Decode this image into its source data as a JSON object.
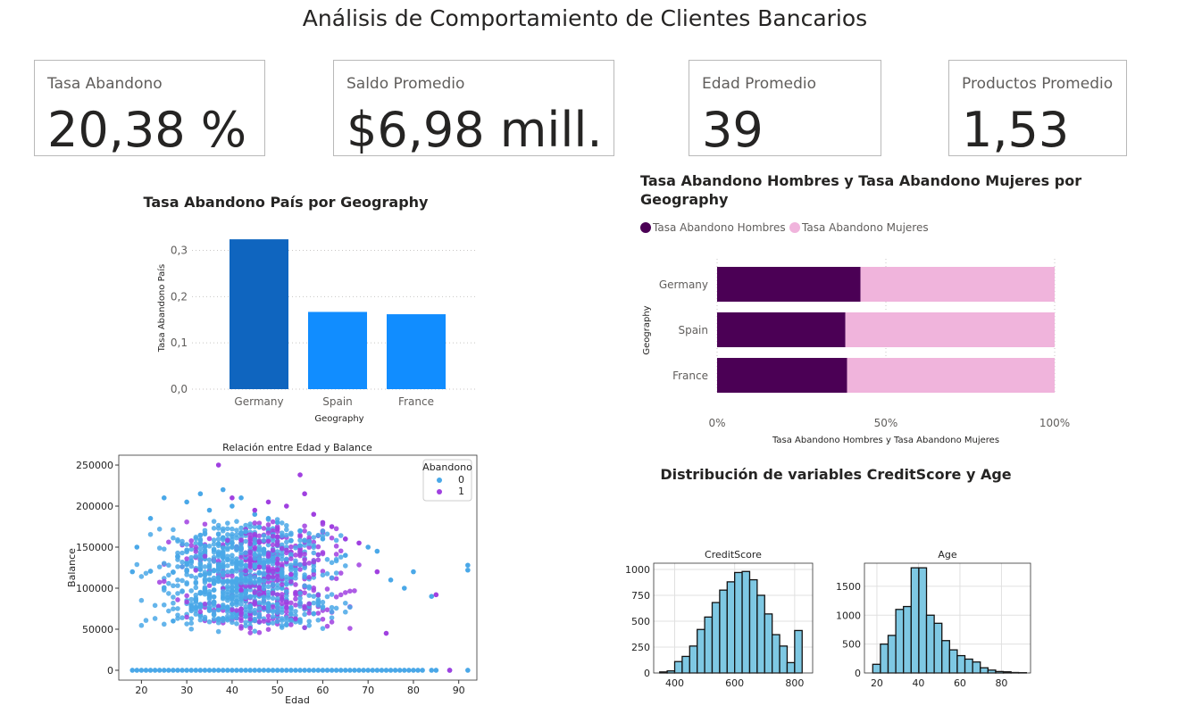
{
  "title": "Análisis de Comportamiento de Clientes Bancarios",
  "kpis": [
    {
      "label": "Tasa Abandono",
      "value": "20,38 %"
    },
    {
      "label": "Saldo Promedio",
      "value": "$6,98 mill."
    },
    {
      "label": "Edad Promedio",
      "value": "39"
    },
    {
      "label": "Productos Promedio",
      "value": "1,53"
    }
  ],
  "colors": {
    "bar_dark": "#0f65bf",
    "bar_light": "#118dff",
    "men": "#4b0055",
    "women": "#f0b4dc",
    "no_churn": "#4aa8e8",
    "churn": "#a040e0",
    "hist": "#7ec8e3"
  },
  "chart_data": [
    {
      "type": "bar",
      "title": "Tasa Abandono País por Geography",
      "xlabel": "Geography",
      "ylabel": "Tasa Abandono País",
      "categories": [
        "Germany",
        "Spain",
        "France"
      ],
      "values": [
        0.324,
        0.167,
        0.162
      ],
      "ylim": [
        0,
        0.33
      ],
      "yticks": [
        "0,0",
        "0,1",
        "0,2",
        "0,3"
      ],
      "grid": true
    },
    {
      "type": "bar",
      "orientation": "horizontal-100%-stacked",
      "title": "Tasa Abandono Hombres y Tasa Abandono Mujeres por Geography",
      "xlabel": "Tasa Abandono Hombres y Tasa Abandono Mujeres",
      "ylabel": "Geography",
      "categories": [
        "Germany",
        "Spain",
        "France"
      ],
      "series": [
        {
          "name": "Tasa Abandono Hombres",
          "values": [
            42.5,
            38.0,
            38.5
          ]
        },
        {
          "name": "Tasa Abandono Mujeres",
          "values": [
            57.5,
            62.0,
            61.5
          ]
        }
      ],
      "xticks": [
        "0%",
        "50%",
        "100%"
      ],
      "legend": "top-left"
    },
    {
      "type": "scatter",
      "title": "Relación entre Edad y Balance",
      "xlabel": "Edad",
      "ylabel": "Balance",
      "xlim": [
        15,
        94
      ],
      "ylim": [
        -12000,
        262000
      ],
      "xticks": [
        "20",
        "30",
        "40",
        "50",
        "60",
        "70",
        "80",
        "90"
      ],
      "yticks": [
        "0",
        "50000",
        "100000",
        "150000",
        "200000",
        "250000"
      ],
      "legend_title": "Abandono",
      "legend_labels": [
        "0",
        "1"
      ],
      "legend": "top-right",
      "series": [
        {
          "name": "0",
          "x": [
            18,
            19,
            20,
            21,
            22,
            23,
            24,
            25,
            26,
            27,
            28,
            29,
            30,
            31,
            32,
            33,
            34,
            35,
            36,
            37,
            38,
            39,
            40,
            41,
            42,
            43,
            44,
            45,
            46,
            47,
            48,
            49,
            50,
            51,
            52,
            53,
            54,
            55,
            56,
            57,
            58,
            59,
            60,
            61,
            62,
            63,
            64,
            65,
            66,
            67,
            68,
            69,
            70,
            71,
            72,
            73,
            74,
            75,
            76,
            77,
            78,
            79,
            80,
            81,
            82,
            84,
            85,
            88,
            92
          ],
          "y": [
            0,
            0,
            0,
            0,
            0,
            0,
            0,
            0,
            0,
            0,
            0,
            0,
            0,
            0,
            0,
            0,
            0,
            0,
            0,
            0,
            0,
            0,
            0,
            0,
            0,
            0,
            0,
            0,
            0,
            0,
            0,
            0,
            0,
            0,
            0,
            0,
            0,
            0,
            0,
            0,
            0,
            0,
            0,
            0,
            0,
            0,
            0,
            0,
            0,
            0,
            0,
            0,
            0,
            0,
            0,
            0,
            0,
            0,
            0,
            0,
            0,
            0,
            0,
            0,
            0,
            0,
            0,
            0,
            0
          ]
        },
        {
          "name": "0",
          "x": [
            18,
            19,
            22,
            25,
            27,
            30,
            33,
            35,
            38,
            40,
            42,
            45,
            48,
            50,
            55,
            60,
            65,
            70,
            72,
            75,
            78,
            80,
            84,
            92,
            92
          ],
          "y": [
            120000,
            150000,
            185000,
            210000,
            60000,
            205000,
            215000,
            195000,
            220000,
            200000,
            210000,
            190000,
            185000,
            180000,
            170000,
            160000,
            140000,
            150000,
            145000,
            110000,
            100000,
            120000,
            90000,
            128000,
            122000
          ]
        },
        {
          "name": "1",
          "x": [
            37,
            40,
            45,
            48,
            52,
            55,
            56,
            58,
            60,
            62,
            65,
            68,
            72,
            74,
            85,
            88
          ],
          "y": [
            250000,
            210000,
            195000,
            205000,
            200000,
            238000,
            215000,
            190000,
            180000,
            175000,
            160000,
            155000,
            120000,
            45000,
            92000,
            0
          ]
        }
      ]
    },
    {
      "type": "histogram",
      "title": "Distribución de variables CreditScore y Age",
      "panels": [
        {
          "title": "CreditScore",
          "bins_start": 350,
          "bin_width": 25,
          "counts": [
            10,
            20,
            110,
            160,
            260,
            420,
            540,
            680,
            800,
            880,
            970,
            980,
            900,
            750,
            570,
            370,
            260,
            100,
            410
          ],
          "xlim": [
            330,
            860
          ],
          "ylim": [
            0,
            1060
          ],
          "xticks": [
            "400",
            "600",
            "800"
          ],
          "yticks": [
            "0",
            "250",
            "500",
            "750",
            "1000"
          ]
        },
        {
          "title": "Age",
          "bins_start": 18,
          "bin_width": 3.7,
          "counts": [
            150,
            500,
            650,
            1100,
            1150,
            1820,
            1820,
            1000,
            860,
            560,
            400,
            300,
            240,
            190,
            90,
            50,
            25,
            20,
            8,
            5
          ],
          "xlim": [
            14,
            94
          ],
          "ylim": [
            0,
            1900
          ],
          "xticks": [
            "20",
            "40",
            "60",
            "80"
          ],
          "yticks": [
            "0",
            "500",
            "1000",
            "1500"
          ]
        }
      ]
    }
  ]
}
